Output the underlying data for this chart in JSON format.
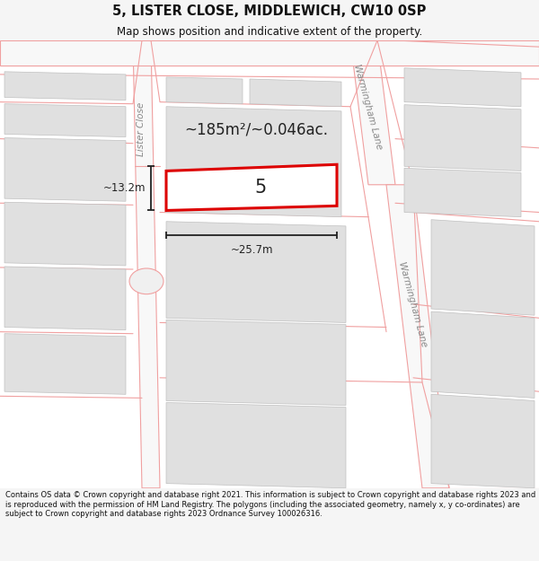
{
  "title": "5, LISTER CLOSE, MIDDLEWICH, CW10 0SP",
  "subtitle": "Map shows position and indicative extent of the property.",
  "footer": "Contains OS data © Crown copyright and database right 2021. This information is subject to Crown copyright and database rights 2023 and is reproduced with the permission of HM Land Registry. The polygons (including the associated geometry, namely x, y co-ordinates) are subject to Crown copyright and database rights 2023 Ordnance Survey 100026316.",
  "area_label": "~185m²/~0.046ac.",
  "dim_width": "~25.7m",
  "dim_height": "~13.2m",
  "property_number": "5",
  "map_bg": "#ffffff",
  "fig_bg": "#f5f5f5",
  "road_fill": "#ffffff",
  "road_stroke": "#f0a0a0",
  "building_fill": "#e0e0e0",
  "building_stroke": "#c0c0c0",
  "plot_fill": "#ffffff",
  "plot_stroke": "#dd0000",
  "dim_color": "#222222",
  "label_color": "#888888",
  "title_color": "#111111",
  "footer_color": "#111111",
  "road_lw": 0.8,
  "building_lw": 0.5
}
